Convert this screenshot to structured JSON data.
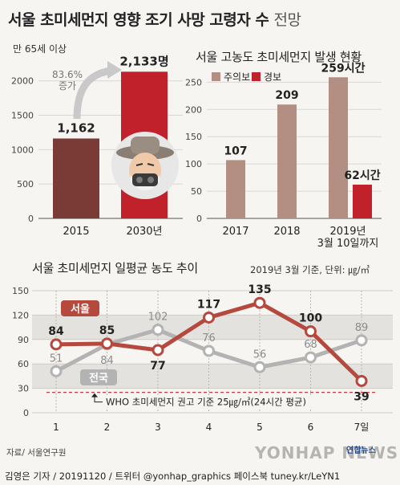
{
  "header": {
    "title_main": "서울 초미세먼지 영향 조기 사망 고령자 수",
    "title_light": "전망"
  },
  "chart_data": [
    {
      "type": "bar",
      "subtitle": "만 65세 이상",
      "categories": [
        "2015",
        "2030년"
      ],
      "values": [
        1162,
        2133
      ],
      "value_labels": [
        "1,162",
        "2,133명"
      ],
      "ylim": [
        0,
        2300
      ],
      "yticks": [
        0,
        500,
        1000,
        1500,
        2000
      ],
      "annotation": {
        "text_value": "83.6%",
        "text_label": "증가"
      },
      "colors": [
        "#7a3a35",
        "#c0212b"
      ]
    },
    {
      "type": "bar",
      "title": "서울 고농도 초미세먼지 발생 현황",
      "legend": [
        "주의보",
        "경보"
      ],
      "categories": [
        "2017",
        "2018",
        "2019년\n3월 10일까지"
      ],
      "category_lines": [
        [
          "2017"
        ],
        [
          "2018"
        ],
        [
          "2019년",
          "3월 10일까지"
        ]
      ],
      "series": [
        {
          "name": "주의보",
          "values": [
            107,
            209,
            259
          ],
          "labels": [
            "107",
            "209",
            "259시간"
          ],
          "color": "#b38f83"
        },
        {
          "name": "경보",
          "values": [
            null,
            null,
            62
          ],
          "labels": [
            "",
            "",
            "62시간"
          ],
          "color": "#c0212b"
        }
      ],
      "ylim": [
        0,
        280
      ],
      "yticks": [
        0,
        50,
        100,
        150,
        200,
        250
      ]
    },
    {
      "type": "line",
      "title": "서울 초미세먼지 일평균 농도 추이",
      "note": "2019년 3월 기준, 단위: ㎍/㎥",
      "x": [
        "1",
        "2",
        "3",
        "4",
        "5",
        "6",
        "7일"
      ],
      "series": [
        {
          "name": "서울",
          "values": [
            84,
            85,
            77,
            117,
            135,
            100,
            39
          ],
          "color": "#b5493e"
        },
        {
          "name": "전국",
          "values": [
            51,
            84,
            102,
            76,
            56,
            68,
            89
          ],
          "color": "#b3b3b3"
        }
      ],
      "ylim": [
        0,
        150
      ],
      "yticks": [
        0,
        30,
        60,
        90,
        120,
        150
      ],
      "reference": {
        "value": 25,
        "label": "WHO 초미세먼지 권고 기준 25㎍/㎥(24시간 평균)"
      }
    }
  ],
  "footer": {
    "source": "자료/ 서울연구원",
    "credit": "김영은 기자 / 20191120 / 트위터 @yonhap_graphics  페이스북 tuney.kr/LeYN1",
    "watermark": "YONHAP NEWS",
    "agency": "연합뉴스"
  }
}
